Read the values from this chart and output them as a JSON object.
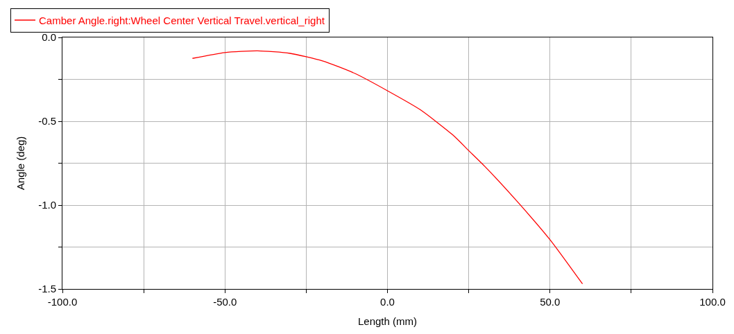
{
  "chart_data": {
    "type": "line",
    "xlabel": "Length (mm)",
    "ylabel": "Angle (deg)",
    "x": [
      -60,
      -50,
      -40,
      -30,
      -20,
      -10,
      0,
      10,
      20,
      25,
      30,
      40,
      50,
      60
    ],
    "series": [
      {
        "name": "Camber Angle.right:Wheel Center Vertical Travel.vertical_right",
        "color": "#ff0000",
        "values": [
          -0.125,
          -0.09,
          -0.08,
          -0.095,
          -0.14,
          -0.215,
          -0.318,
          -0.43,
          -0.58,
          -0.675,
          -0.77,
          -0.98,
          -1.206,
          -1.47
        ]
      }
    ],
    "xlim": [
      -100,
      100
    ],
    "xticks": [
      {
        "value": -100,
        "label": "-100.0"
      },
      {
        "value": -75,
        "label": null
      },
      {
        "value": -50,
        "label": "-50.0"
      },
      {
        "value": -25,
        "label": null
      },
      {
        "value": 0,
        "label": "0.0"
      },
      {
        "value": 25,
        "label": null
      },
      {
        "value": 50,
        "label": "50.0"
      },
      {
        "value": 75,
        "label": null
      },
      {
        "value": 100,
        "label": "100.0"
      }
    ],
    "ylim": [
      -1.5,
      0
    ],
    "yticks": [
      {
        "value": -1.5,
        "label": "-1.5"
      },
      {
        "value": -1.25,
        "label": null
      },
      {
        "value": -1.0,
        "label": "-1.0"
      },
      {
        "value": -0.75,
        "label": null
      },
      {
        "value": -0.5,
        "label": "-0.5"
      },
      {
        "value": -0.25,
        "label": null
      },
      {
        "value": 0,
        "label": "0.0"
      }
    ],
    "grid": true,
    "legend": "top left",
    "line_style": "solid",
    "marker": "none"
  }
}
